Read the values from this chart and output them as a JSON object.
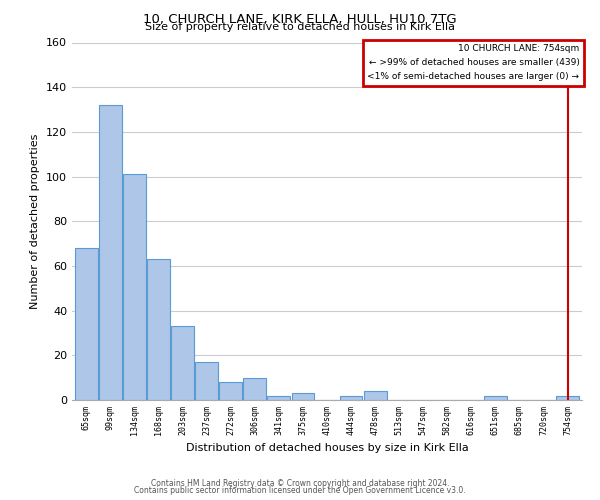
{
  "title": "10, CHURCH LANE, KIRK ELLA, HULL, HU10 7TG",
  "subtitle": "Size of property relative to detached houses in Kirk Ella",
  "xlabel": "Distribution of detached houses by size in Kirk Ella",
  "ylabel": "Number of detached properties",
  "footnote1": "Contains HM Land Registry data © Crown copyright and database right 2024.",
  "footnote2": "Contains public sector information licensed under the Open Government Licence v3.0.",
  "bin_labels": [
    "65sqm",
    "99sqm",
    "134sqm",
    "168sqm",
    "203sqm",
    "237sqm",
    "272sqm",
    "306sqm",
    "341sqm",
    "375sqm",
    "410sqm",
    "444sqm",
    "478sqm",
    "513sqm",
    "547sqm",
    "582sqm",
    "616sqm",
    "651sqm",
    "685sqm",
    "720sqm",
    "754sqm"
  ],
  "bar_values": [
    68,
    132,
    101,
    63,
    33,
    17,
    8,
    10,
    2,
    3,
    0,
    2,
    4,
    0,
    0,
    0,
    0,
    2,
    0,
    0,
    2
  ],
  "bar_color": "#aec6e8",
  "bar_edge_color": "#5b9bd5",
  "ylim": [
    0,
    160
  ],
  "yticks": [
    0,
    20,
    40,
    60,
    80,
    100,
    120,
    140,
    160
  ],
  "legend_title": "10 CHURCH LANE: 754sqm",
  "legend_line1": "← >99% of detached houses are smaller (439)",
  "legend_line2": "<1% of semi-detached houses are larger (0) →",
  "legend_border_color": "#cc0000",
  "grid_color": "#cccccc",
  "background_color": "#ffffff",
  "title_fontsize": 9.5,
  "subtitle_fontsize": 8,
  "ylabel_fontsize": 8,
  "xlabel_fontsize": 8,
  "ytick_fontsize": 8,
  "xtick_fontsize": 6,
  "footnote_fontsize": 5.5
}
